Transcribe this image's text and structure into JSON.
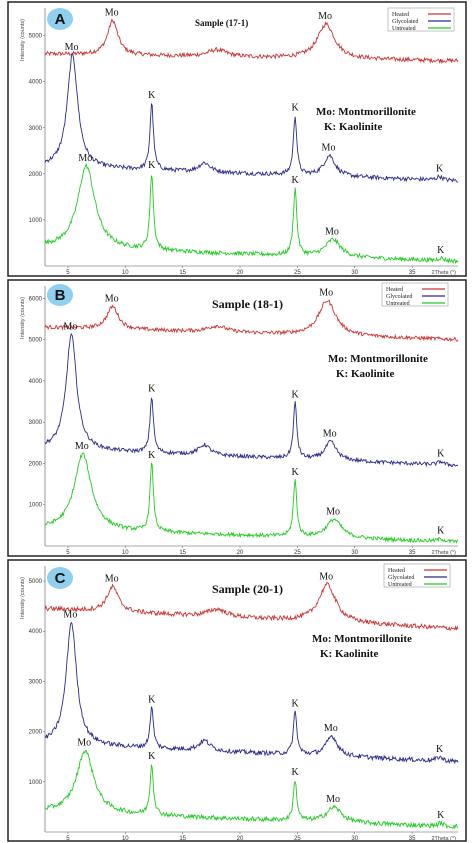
{
  "legend": [
    "Heated",
    "Glycolated",
    "Untreated"
  ],
  "legend_colors": [
    "#cc3333",
    "#2a2a8c",
    "#22cc22"
  ],
  "notes": [
    "Mo: Montmorillonite",
    "K: Kaolinite"
  ],
  "mo_label": "Mo",
  "k_label": "K",
  "chart_data": [
    {
      "type": "line",
      "panel": "A",
      "title": "Sample (17-1)",
      "ylabel": "Intensity (counts)",
      "xlabel": "2Theta (°)",
      "xlim": [
        3,
        39
      ],
      "ylim": [
        0,
        5600
      ],
      "xticks": [
        5,
        10,
        15,
        20,
        25,
        30,
        35
      ],
      "yticks": [
        1000,
        2000,
        3000,
        4000,
        5000
      ],
      "series": [
        {
          "name": "Heated",
          "baseline_start": 4600,
          "baseline_end": 4450,
          "peaks": [
            [
              8.9,
              750,
              0.55
            ],
            [
              18.0,
              150,
              1.0
            ],
            [
              27.5,
              750,
              0.9
            ]
          ]
        },
        {
          "name": "Glycolated",
          "baseline_start": 2150,
          "baseline_end": 1850,
          "peaks": [
            [
              5.4,
              2450,
              0.55
            ],
            [
              12.3,
              1450,
              0.18
            ],
            [
              16.9,
              200,
              0.6
            ],
            [
              24.8,
              1280,
              0.18
            ],
            [
              27.8,
              450,
              0.6
            ],
            [
              37.4,
              80,
              0.3
            ]
          ]
        },
        {
          "name": "Untreated",
          "baseline_start": 400,
          "baseline_end": 100,
          "peaks": [
            [
              6.6,
              1800,
              0.9
            ],
            [
              12.3,
              1650,
              0.18
            ],
            [
              24.8,
              1450,
              0.18
            ],
            [
              28.1,
              380,
              0.8
            ],
            [
              37.5,
              60,
              0.3
            ]
          ]
        }
      ],
      "annotations": [
        {
          "text": "Mo",
          "series": "Heated",
          "x": 8.9
        },
        {
          "text": "Mo",
          "series": "Heated",
          "x": 27.5
        },
        {
          "text": "Mo",
          "series": "Glycolated",
          "x": 5.4
        },
        {
          "text": "K",
          "series": "Glycolated",
          "x": 12.3
        },
        {
          "text": "K",
          "series": "Glycolated",
          "x": 24.8
        },
        {
          "text": "Mo",
          "series": "Glycolated",
          "x": 27.8
        },
        {
          "text": "K",
          "series": "Glycolated",
          "x": 37.4
        },
        {
          "text": "Mo",
          "series": "Untreated",
          "x": 6.6
        },
        {
          "text": "K",
          "series": "Untreated",
          "x": 12.3
        },
        {
          "text": "K",
          "series": "Untreated",
          "x": 24.8
        },
        {
          "text": "Mo",
          "series": "Untreated",
          "x": 28.1
        },
        {
          "text": "K",
          "series": "Untreated",
          "x": 37.5
        }
      ]
    },
    {
      "type": "line",
      "panel": "B",
      "title": "Sample (18-1)",
      "ylabel": "Intensity (counts)",
      "xlabel": "2Theta (°)",
      "xlim": [
        3,
        39
      ],
      "ylim": [
        0,
        6300
      ],
      "xticks": [
        5,
        10,
        15,
        20,
        25,
        30,
        35
      ],
      "yticks": [
        1000,
        2000,
        3000,
        4000,
        5000,
        6000
      ],
      "series": [
        {
          "name": "Heated",
          "baseline_start": 5300,
          "baseline_end": 5000,
          "peaks": [
            [
              8.9,
              550,
              0.6
            ],
            [
              18.0,
              150,
              1.0
            ],
            [
              27.6,
              850,
              0.9
            ]
          ]
        },
        {
          "name": "Glycolated",
          "baseline_start": 2350,
          "baseline_end": 1950,
          "peaks": [
            [
              5.3,
              2800,
              0.55
            ],
            [
              12.3,
              1350,
              0.18
            ],
            [
              16.9,
              250,
              0.6
            ],
            [
              24.8,
              1350,
              0.18
            ],
            [
              27.9,
              450,
              0.6
            ],
            [
              37.5,
              80,
              0.3
            ]
          ]
        },
        {
          "name": "Untreated",
          "baseline_start": 400,
          "baseline_end": 100,
          "peaks": [
            [
              6.3,
              1850,
              0.9
            ],
            [
              12.3,
              1650,
              0.18
            ],
            [
              24.8,
              1350,
              0.18
            ],
            [
              28.2,
              450,
              0.8
            ],
            [
              37.5,
              60,
              0.3
            ]
          ]
        }
      ],
      "annotations": [
        {
          "text": "Mo",
          "series": "Heated",
          "x": 8.9
        },
        {
          "text": "Mo",
          "series": "Heated",
          "x": 27.6
        },
        {
          "text": "Mo",
          "series": "Glycolated",
          "x": 5.3
        },
        {
          "text": "K",
          "series": "Glycolated",
          "x": 12.3
        },
        {
          "text": "K",
          "series": "Glycolated",
          "x": 24.8
        },
        {
          "text": "Mo",
          "series": "Glycolated",
          "x": 27.9
        },
        {
          "text": "K",
          "series": "Glycolated",
          "x": 37.5
        },
        {
          "text": "Mo",
          "series": "Untreated",
          "x": 6.3
        },
        {
          "text": "K",
          "series": "Untreated",
          "x": 12.3
        },
        {
          "text": "K",
          "series": "Untreated",
          "x": 24.8
        },
        {
          "text": "Mo",
          "series": "Untreated",
          "x": 28.2
        },
        {
          "text": "K",
          "series": "Untreated",
          "x": 37.5
        }
      ]
    },
    {
      "type": "line",
      "panel": "C",
      "title": "Sample (20-1)",
      "ylabel": "Intensity (counts)",
      "xlabel": "2Theta (°)",
      "xlim": [
        3,
        39
      ],
      "ylim": [
        0,
        5300
      ],
      "xticks": [
        5,
        10,
        15,
        20,
        25,
        30,
        35
      ],
      "yticks": [
        1000,
        2000,
        3000,
        4000,
        5000
      ],
      "series": [
        {
          "name": "Heated",
          "baseline_start": 4450,
          "baseline_end": 4050,
          "peaks": [
            [
              8.9,
              500,
              0.6
            ],
            [
              18.0,
              150,
              1.0
            ],
            [
              27.6,
              750,
              0.9
            ]
          ]
        },
        {
          "name": "Glycolated",
          "baseline_start": 1750,
          "baseline_end": 1400,
          "peaks": [
            [
              5.3,
              2450,
              0.55
            ],
            [
              12.3,
              800,
              0.18
            ],
            [
              16.9,
              200,
              0.6
            ],
            [
              24.8,
              850,
              0.18
            ],
            [
              28.0,
              400,
              0.6
            ],
            [
              37.4,
              80,
              0.3
            ]
          ]
        },
        {
          "name": "Untreated",
          "baseline_start": 400,
          "baseline_end": 100,
          "peaks": [
            [
              6.5,
              1250,
              0.9
            ],
            [
              12.3,
              1000,
              0.18
            ],
            [
              24.8,
              800,
              0.18
            ],
            [
              28.2,
              300,
              0.8
            ],
            [
              37.5,
              60,
              0.3
            ]
          ]
        }
      ],
      "annotations": [
        {
          "text": "Mo",
          "series": "Heated",
          "x": 8.9
        },
        {
          "text": "Mo",
          "series": "Heated",
          "x": 27.6
        },
        {
          "text": "Mo",
          "series": "Glycolated",
          "x": 5.3
        },
        {
          "text": "K",
          "series": "Glycolated",
          "x": 12.3
        },
        {
          "text": "K",
          "series": "Glycolated",
          "x": 24.8
        },
        {
          "text": "Mo",
          "series": "Glycolated",
          "x": 28.0
        },
        {
          "text": "K",
          "series": "Glycolated",
          "x": 37.4
        },
        {
          "text": "Mo",
          "series": "Untreated",
          "x": 6.5
        },
        {
          "text": "K",
          "series": "Untreated",
          "x": 12.3
        },
        {
          "text": "K",
          "series": "Untreated",
          "x": 24.8
        },
        {
          "text": "Mo",
          "series": "Untreated",
          "x": 28.2
        },
        {
          "text": "K",
          "series": "Untreated",
          "x": 37.5
        }
      ]
    }
  ]
}
